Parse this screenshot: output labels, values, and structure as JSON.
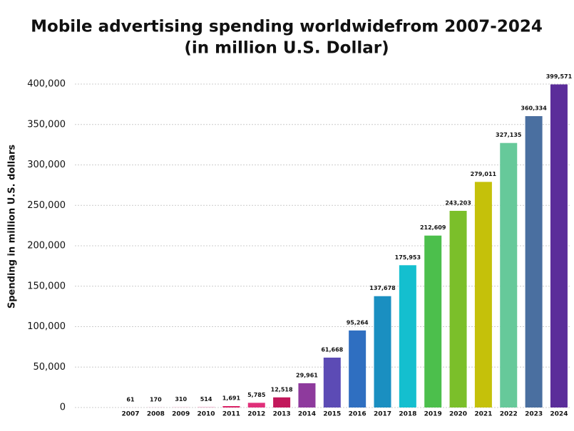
{
  "chart_data": {
    "type": "bar",
    "title": "Mobile advertising spending worldwidefrom 2007-2024",
    "subtitle": "(in million U.S. Dollar)",
    "y_label": "Spending in million U.S. dollars",
    "categories": [
      "2007",
      "2008",
      "2009",
      "2010",
      "2011",
      "2012",
      "2013",
      "2014",
      "2015",
      "2016",
      "2017",
      "2018",
      "2019",
      "2020",
      "2021",
      "2022",
      "2023",
      "2024"
    ],
    "values": [
      61,
      170,
      310,
      514,
      1691,
      5785,
      12518,
      29961,
      61668,
      95264,
      137678,
      175953,
      212609,
      243203,
      279011,
      327135,
      360334,
      399571
    ],
    "value_labels": [
      "61",
      "170",
      "310",
      "514",
      "1,691",
      "5,785",
      "12,518",
      "29,961",
      "61,668",
      "95,264",
      "137,678",
      "175,953",
      "212,609",
      "243,203",
      "279,011",
      "327,135",
      "360,334",
      "399,571"
    ],
    "colors": [
      "#e8a0c0",
      "#e8a0c0",
      "#e8a0c0",
      "#e089b0",
      "#d81b60",
      "#e0307a",
      "#c2185b",
      "#8e3a9d",
      "#5c4bb5",
      "#2f6fc1",
      "#1a8fc1",
      "#14bfcf",
      "#4cbf4c",
      "#7bbf2a",
      "#c5c10a",
      "#66c99a",
      "#4a6fa0",
      "#5b2d9a"
    ],
    "ylim": [
      0,
      400000
    ],
    "yticks": [
      0,
      {
        "value": 50000,
        "label": "50,000"
      },
      {
        "value": 100000,
        "label": "100,000"
      },
      {
        "value": 150000,
        "label": "150,000"
      },
      {
        "value": 200000,
        "label": "200,000"
      },
      {
        "value": 250000,
        "label": "250,000"
      },
      {
        "value": 300000,
        "label": "300,000"
      },
      {
        "value": 350000,
        "label": "350,000"
      },
      {
        "value": 400000,
        "label": "400,000"
      }
    ],
    "grid": true
  }
}
